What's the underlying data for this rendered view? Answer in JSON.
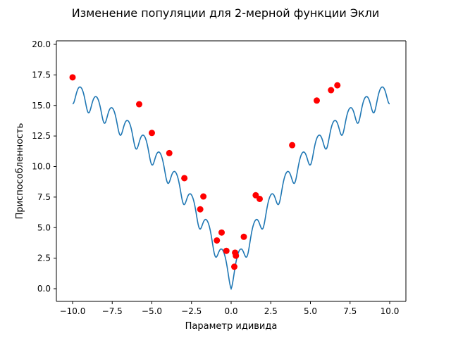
{
  "chart_data": {
    "type": "line",
    "title": "Изменение популяции для 2-мерной функции Экли",
    "xlabel": "Параметр идивида",
    "ylabel": "Приспособленность",
    "xlim": [
      -10.0,
      10.0
    ],
    "ylim": [
      0.0,
      20.0
    ],
    "xticks": [
      "−10.0",
      "−7.5",
      "−5.0",
      "−2.5",
      "0.0",
      "2.5",
      "5.0",
      "7.5",
      "10.0"
    ],
    "yticks": [
      "0.0",
      "2.5",
      "5.0",
      "7.5",
      "10.0",
      "12.5",
      "15.0",
      "17.5",
      "20.0"
    ],
    "grid": false,
    "series": [
      {
        "kind": "line",
        "color": "#1f77b4",
        "function": "Ackley 1D along one axis"
      },
      {
        "kind": "scatter",
        "color": "#ff0000",
        "points": [
          [
            -10.0,
            17.3
          ],
          [
            -5.8,
            15.1
          ],
          [
            -5.0,
            12.75
          ],
          [
            -3.9,
            11.1
          ],
          [
            -2.95,
            9.05
          ],
          [
            -1.75,
            7.55
          ],
          [
            -1.95,
            6.5
          ],
          [
            -0.9,
            3.95
          ],
          [
            -0.6,
            4.6
          ],
          [
            -0.3,
            3.1
          ],
          [
            0.8,
            4.25
          ],
          [
            0.2,
            1.8
          ],
          [
            0.25,
            2.95
          ],
          [
            0.3,
            2.7
          ],
          [
            1.55,
            7.65
          ],
          [
            1.8,
            7.35
          ],
          [
            3.85,
            11.75
          ],
          [
            5.4,
            15.4
          ],
          [
            6.3,
            16.25
          ],
          [
            6.7,
            16.65
          ]
        ]
      }
    ]
  }
}
